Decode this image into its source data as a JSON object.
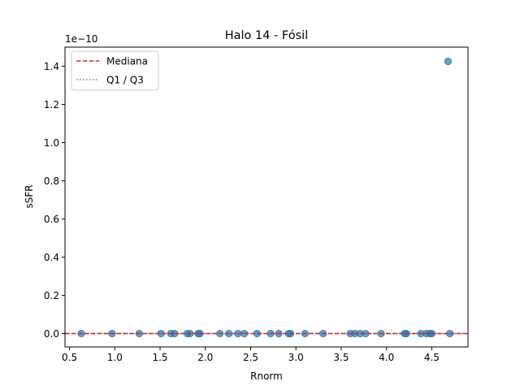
{
  "chart_data": {
    "type": "scatter",
    "title": "Halo 14 - Fósil",
    "xlabel": "Rnorm",
    "ylabel": "sSFR",
    "y_offset_text": "1e−10",
    "xlim": [
      0.45,
      4.9
    ],
    "ylim": [
      -0.07,
      1.5
    ],
    "x_ticks": [
      0.5,
      1.0,
      1.5,
      2.0,
      2.5,
      3.0,
      3.5,
      4.0,
      4.5
    ],
    "x_tick_labels": [
      "0.5",
      "1.0",
      "1.5",
      "2.0",
      "2.5",
      "3.0",
      "3.5",
      "4.0",
      "4.5"
    ],
    "y_ticks": [
      0.0,
      0.2,
      0.4,
      0.6,
      0.8,
      1.0,
      1.2,
      1.4
    ],
    "y_tick_labels": [
      "0.0",
      "0.2",
      "0.4",
      "0.6",
      "0.8",
      "1.0",
      "1.2",
      "1.4"
    ],
    "grid": false,
    "legend_position": "top-left",
    "legend": [
      {
        "label": "Mediana",
        "style": "dashed",
        "color": "#d62728"
      },
      {
        "label": "Q1 / Q3",
        "style": "dotted",
        "color": "#808080"
      }
    ],
    "point_color": "#1f77b4",
    "median": 0.0,
    "q1": 0.0,
    "q3": 0.0,
    "points": [
      {
        "x": 0.63,
        "y": 0.0
      },
      {
        "x": 0.97,
        "y": 0.0
      },
      {
        "x": 1.27,
        "y": 0.0
      },
      {
        "x": 1.51,
        "y": 0.0
      },
      {
        "x": 1.62,
        "y": 0.0
      },
      {
        "x": 1.66,
        "y": 0.0
      },
      {
        "x": 1.8,
        "y": 0.0
      },
      {
        "x": 1.83,
        "y": 0.0
      },
      {
        "x": 1.92,
        "y": 0.0
      },
      {
        "x": 1.94,
        "y": 0.0
      },
      {
        "x": 2.16,
        "y": 0.0
      },
      {
        "x": 2.26,
        "y": 0.0
      },
      {
        "x": 2.36,
        "y": 0.0
      },
      {
        "x": 2.43,
        "y": 0.0
      },
      {
        "x": 2.57,
        "y": 0.0
      },
      {
        "x": 2.72,
        "y": 0.0
      },
      {
        "x": 2.81,
        "y": 0.0
      },
      {
        "x": 2.92,
        "y": 0.0
      },
      {
        "x": 2.94,
        "y": 0.0
      },
      {
        "x": 3.1,
        "y": 0.0
      },
      {
        "x": 3.3,
        "y": 0.0
      },
      {
        "x": 3.6,
        "y": 0.0
      },
      {
        "x": 3.65,
        "y": 0.0
      },
      {
        "x": 3.71,
        "y": 0.0
      },
      {
        "x": 3.77,
        "y": 0.0
      },
      {
        "x": 3.94,
        "y": 0.0
      },
      {
        "x": 4.2,
        "y": 0.0
      },
      {
        "x": 4.22,
        "y": 0.0
      },
      {
        "x": 4.38,
        "y": 0.0
      },
      {
        "x": 4.44,
        "y": 0.0
      },
      {
        "x": 4.48,
        "y": 0.0
      },
      {
        "x": 4.5,
        "y": 0.0
      },
      {
        "x": 4.68,
        "y": 1.425
      },
      {
        "x": 4.7,
        "y": 0.0
      }
    ]
  }
}
